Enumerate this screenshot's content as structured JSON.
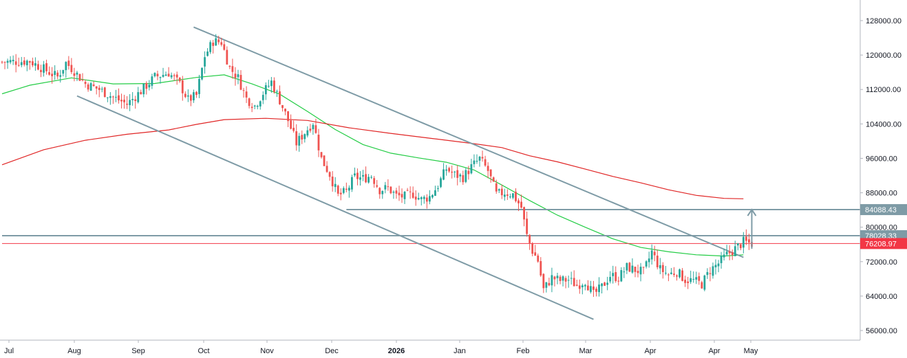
{
  "chart_data": {
    "type": "candlestick",
    "title": "",
    "xlabel": "",
    "ylabel": "",
    "ylim": [
      53500,
      132000
    ],
    "grid": false,
    "x_tick_labels": [
      "Jul",
      "Aug",
      "Sep",
      "Oct",
      "Nov",
      "Dec",
      "2026",
      "Jan",
      "Feb",
      "Mar",
      "Apr",
      "Apr",
      "May"
    ],
    "x_tick_bold": [
      false,
      false,
      false,
      false,
      false,
      false,
      true,
      false,
      false,
      false,
      false,
      false,
      false
    ],
    "y_ticks": [
      128000,
      120000,
      112000,
      104000,
      96000,
      88000,
      80000,
      72000,
      64000,
      56000
    ],
    "y_tick_labels": [
      "128000.00",
      "120000.00",
      "112000.00",
      "104000.00",
      "96000.00",
      "88000.00",
      "80000.00",
      "72000.00",
      "64000.00",
      "56000.00"
    ],
    "price_tags": [
      {
        "label": "84088.43",
        "value": 84088.43,
        "color": "#7e9ba6"
      },
      {
        "label": "78028.33",
        "value": 78028.33,
        "color": "#7e9ba6"
      },
      {
        "label": "76208.97",
        "value": 76208.97,
        "color": "#f23645"
      }
    ],
    "horizontal_lines": [
      {
        "value": 84088.43,
        "color": "#7e9ba6",
        "from_bar": 124,
        "to_bar": 400
      },
      {
        "value": 78028.33,
        "color": "#7e9ba6",
        "from_bar": 0,
        "to_bar": 400
      },
      {
        "value": 76208.97,
        "color": "#f23645",
        "from_bar": 0,
        "to_bar": 400
      }
    ],
    "trend_lines": [
      {
        "from": {
          "bar": 69,
          "value": 126500
        },
        "to": {
          "bar": 267,
          "value": 73000
        },
        "color": "#7e9ba6"
      },
      {
        "from": {
          "bar": 27,
          "value": 110500
        },
        "to": {
          "bar": 213,
          "value": 58600
        },
        "color": "#7e9ba6"
      }
    ],
    "arrow": {
      "bar": 270,
      "from_value": 75000,
      "to_value": 84088.43,
      "color": "#7e9ba6"
    },
    "moving_averages": [
      {
        "color": "#22cc44",
        "points": [
          [
            0,
            111000
          ],
          [
            10,
            113000
          ],
          [
            25,
            114700
          ],
          [
            40,
            113300
          ],
          [
            55,
            113400
          ],
          [
            70,
            114800
          ],
          [
            80,
            115400
          ],
          [
            90,
            113300
          ],
          [
            100,
            110900
          ],
          [
            110,
            106900
          ],
          [
            120,
            102700
          ],
          [
            130,
            99200
          ],
          [
            140,
            97200
          ],
          [
            150,
            96100
          ],
          [
            160,
            95100
          ],
          [
            170,
            93300
          ],
          [
            180,
            89800
          ],
          [
            190,
            86200
          ],
          [
            200,
            82800
          ],
          [
            210,
            80000
          ],
          [
            220,
            77300
          ],
          [
            230,
            75300
          ],
          [
            240,
            74300
          ],
          [
            250,
            73600
          ],
          [
            260,
            73300
          ],
          [
            267,
            73600
          ]
        ]
      },
      {
        "color": "#e02424",
        "points": [
          [
            0,
            94500
          ],
          [
            15,
            98000
          ],
          [
            30,
            100200
          ],
          [
            45,
            101600
          ],
          [
            60,
            102600
          ],
          [
            70,
            103900
          ],
          [
            80,
            105000
          ],
          [
            95,
            105300
          ],
          [
            110,
            104800
          ],
          [
            125,
            103100
          ],
          [
            140,
            101800
          ],
          [
            155,
            100600
          ],
          [
            170,
            99400
          ],
          [
            180,
            98500
          ],
          [
            190,
            96600
          ],
          [
            200,
            95200
          ],
          [
            210,
            93500
          ],
          [
            220,
            91800
          ],
          [
            230,
            90300
          ],
          [
            240,
            88700
          ],
          [
            250,
            87400
          ],
          [
            260,
            86700
          ],
          [
            267,
            86600
          ]
        ]
      }
    ],
    "candles": {
      "up_color": "#26a69a",
      "down_color": "#ef5350",
      "anchors": [
        [
          0,
          118400
        ],
        [
          10,
          118600
        ],
        [
          20,
          114900
        ],
        [
          23,
          118200
        ],
        [
          26,
          116300
        ],
        [
          30,
          113300
        ],
        [
          35,
          112000
        ],
        [
          40,
          110200
        ],
        [
          45,
          108600
        ],
        [
          50,
          111600
        ],
        [
          55,
          114900
        ],
        [
          60,
          115900
        ],
        [
          64,
          113200
        ],
        [
          67,
          109600
        ],
        [
          70,
          110600
        ],
        [
          73,
          119800
        ],
        [
          76,
          123200
        ],
        [
          79,
          123000
        ],
        [
          82,
          117000
        ],
        [
          85,
          114700
        ],
        [
          88,
          109900
        ],
        [
          91,
          108200
        ],
        [
          94,
          111200
        ],
        [
          97,
          113800
        ],
        [
          100,
          109500
        ],
        [
          103,
          104800
        ],
        [
          106,
          99500
        ],
        [
          109,
          102000
        ],
        [
          112,
          104400
        ],
        [
          115,
          95900
        ],
        [
          118,
          92300
        ],
        [
          121,
          87300
        ],
        [
          124,
          88300
        ],
        [
          127,
          91700
        ],
        [
          130,
          91300
        ],
        [
          133,
          92000
        ],
        [
          136,
          88700
        ],
        [
          139,
          89100
        ],
        [
          142,
          87300
        ],
        [
          145,
          87100
        ],
        [
          148,
          87800
        ],
        [
          151,
          86400
        ],
        [
          154,
          87100
        ],
        [
          157,
          89700
        ],
        [
          160,
          93600
        ],
        [
          163,
          92200
        ],
        [
          166,
          91600
        ],
        [
          169,
          94000
        ],
        [
          172,
          95900
        ],
        [
          175,
          93100
        ],
        [
          178,
          87600
        ],
        [
          181,
          88100
        ],
        [
          184,
          87600
        ],
        [
          187,
          84600
        ],
        [
          189,
          78000
        ],
        [
          191,
          74500
        ],
        [
          193,
          72200
        ],
        [
          195,
          65500
        ],
        [
          198,
          68300
        ],
        [
          201,
          67600
        ],
        [
          204,
          67800
        ],
        [
          207,
          66500
        ],
        [
          210,
          67600
        ],
        [
          213,
          64300
        ],
        [
          216,
          66100
        ],
        [
          219,
          68800
        ],
        [
          222,
          68300
        ],
        [
          225,
          70700
        ],
        [
          228,
          70100
        ],
        [
          231,
          69500
        ],
        [
          234,
          74300
        ],
        [
          237,
          70200
        ],
        [
          240,
          69000
        ],
        [
          243,
          69700
        ],
        [
          246,
          67800
        ],
        [
          249,
          67600
        ],
        [
          252,
          66800
        ],
        [
          255,
          70000
        ],
        [
          258,
          71600
        ],
        [
          261,
          73600
        ],
        [
          264,
          75000
        ],
        [
          267,
          76600
        ],
        [
          270,
          76200
        ]
      ],
      "bar_count": 271
    }
  }
}
